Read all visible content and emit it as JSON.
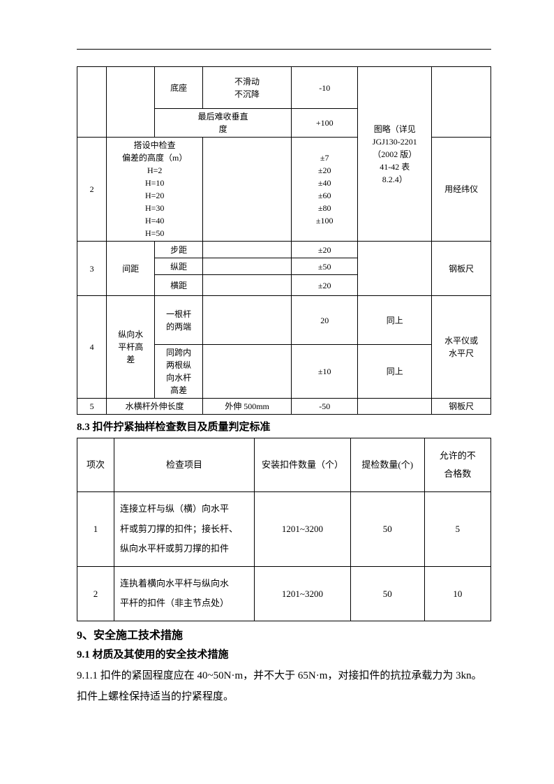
{
  "table1": {
    "r1c3": "底座",
    "r1c4": "不滑动\n不沉降",
    "r1c5": "-10",
    "r2c2": "最后难收垂直\n度",
    "r2c5": "+100",
    "r3c1": "2",
    "r3c2": "搭设中检查\n偏差的高度（m）\nH=2\nH=10\nH=20\nH=30\nH=40\nH=50",
    "r3c5": "±7\n±20\n±40\n±60\n±80\n±100",
    "r3c6": "图略（详见\nJGJ130-2201\n（2002 版）\n41-42 表\n8.2.4）",
    "r3c7": "用经纬仪",
    "r4c1": "3",
    "r4c2": "间距",
    "r4c3a": "步距",
    "r4c5a": "±20",
    "r4c3b": "纵距",
    "r4c5b": "±50",
    "r4c3c": "横距",
    "r4c5c": "±20",
    "r4c7": "钢板尺",
    "r5c1": "4",
    "r5c2": "纵向水\n平杆高\n差",
    "r5c3a": "一根杆\n的两端",
    "r5c5a": "20",
    "r5c6a": "同上",
    "r5c3b": "同跨内\n两根纵\n向水杆\n高差",
    "r5c5b": "±10",
    "r5c6b": "同上",
    "r5c7": "水平仪或\n水平尺",
    "r6c1": "5",
    "r6c2": "水横杆外伸长度",
    "r6c4": "外伸 500mm",
    "r6c5": "-50",
    "r6c7": "钢板尺"
  },
  "heading_83": "8.3 扣件拧紧抽样检查数目及质量判定标准",
  "table2": {
    "h1": "项次",
    "h2": "检查项目",
    "h3": "安装扣件数量（个）",
    "h4": "提检数量(个)",
    "h5": "允许的不\n合格数",
    "r1c1": "1",
    "r1c2": "连接立杆与纵（横）向水平\n杆或剪刀撑的扣件；接长杆、\n纵向水平杆或剪刀撑的扣件",
    "r1c3": "1201~3200",
    "r1c4": "50",
    "r1c5": "5",
    "r2c1": "2",
    "r2c2": "连执着横向水平杆与纵向水\n平杆的扣件（非主节点处）",
    "r2c3": "1201~3200",
    "r2c4": "50",
    "r2c5": "10"
  },
  "heading_9": "9、安全施工技术措施",
  "heading_91": "9.1 材质及其使用的安全技术措施",
  "para_911": "9.1.1 扣件的紧固程度应在 40~50N·m，并不大于 65N·m，对接扣件的抗拉承载力为 3kn。扣件上螺栓保持适当的拧紧程度。"
}
